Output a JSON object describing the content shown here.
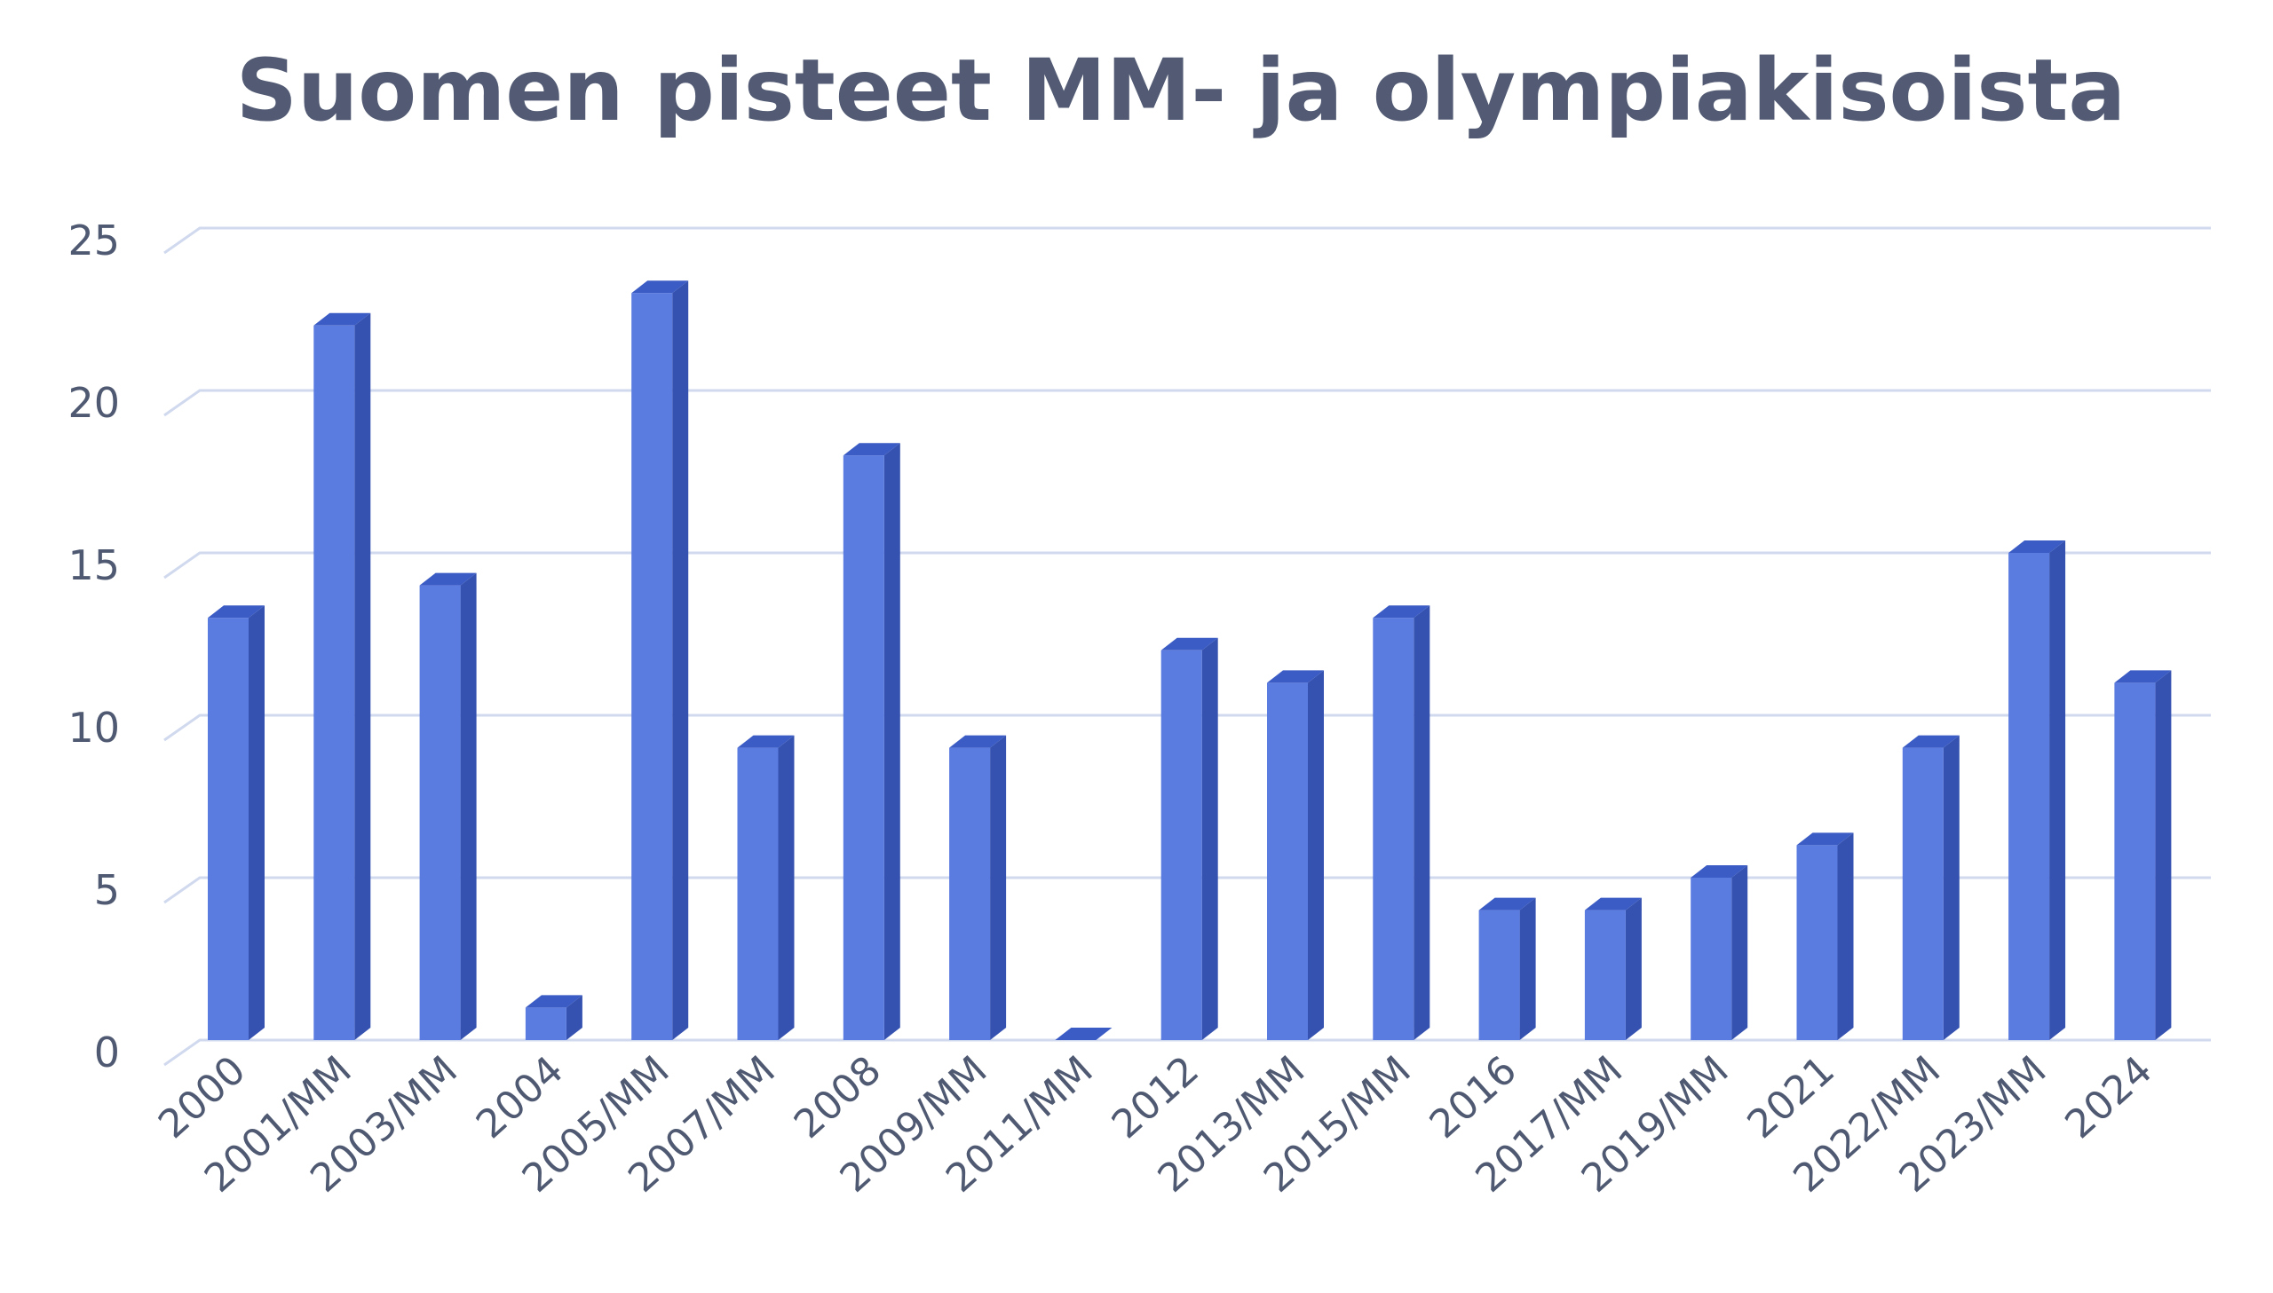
{
  "chart_data": {
    "type": "bar",
    "title": "Suomen pisteet MM- ja olympiakisoista",
    "categories": [
      "2000",
      "2001/MM",
      "2003/MM",
      "2004",
      "2005/MM",
      "2007/MM",
      "2008",
      "2009/MM",
      "2011/MM",
      "2012",
      "2013/MM",
      "2015/MM",
      "2016",
      "2017/MM",
      "2019/MM",
      "2021",
      "2022/MM",
      "2023/MM",
      "2024"
    ],
    "values": [
      13,
      22,
      14,
      1,
      23,
      9,
      18,
      9,
      0,
      12,
      11,
      13,
      4,
      4,
      5,
      6,
      9,
      15,
      11
    ],
    "ylim": [
      0,
      25
    ],
    "yticks": [
      0,
      5,
      10,
      15,
      20,
      25
    ],
    "grid": true,
    "legend": "none",
    "colors": {
      "bar_front": "#5a7be0",
      "bar_side": "#3552b0",
      "bar_top": "#3b5cc4",
      "gridline": "#d0d9ee",
      "axis_text": "#4f5a72",
      "title_text": "#525b73"
    }
  }
}
